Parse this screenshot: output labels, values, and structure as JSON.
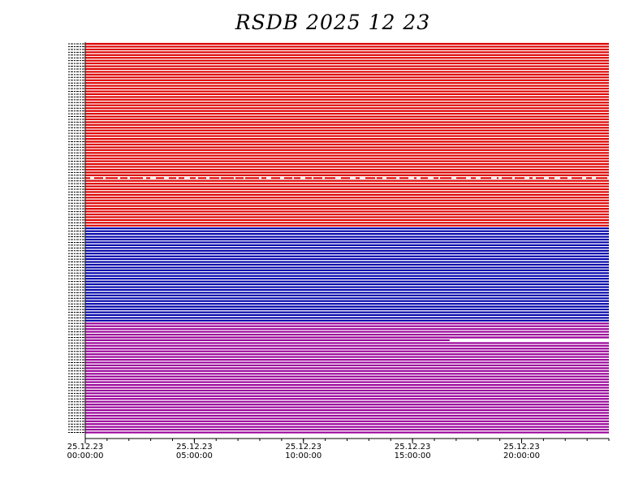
{
  "chart_data": {
    "type": "line",
    "title": "RSDB  2025  12  23",
    "x_axis": {
      "range": [
        "25.12.23 00:00:00",
        "25.12.24 00:00:00"
      ],
      "major_ticks": [
        {
          "date": "25.12.23",
          "time": "00:00:00",
          "hour": 0
        },
        {
          "date": "25.12.23",
          "time": "05:00:00",
          "hour": 5
        },
        {
          "date": "25.12.23",
          "time": "10:00:00",
          "hour": 10
        },
        {
          "date": "25.12.23",
          "time": "15:00:00",
          "hour": 15
        },
        {
          "date": "25.12.23",
          "time": "20:00:00",
          "hour": 20
        }
      ],
      "minor_tick_interval_hours": 1
    },
    "series_groups": [
      {
        "color": "#dd0000",
        "traces": 66
      },
      {
        "color": "#0000aa",
        "traces": 34
      },
      {
        "color": "#990099",
        "traces": 40
      }
    ],
    "legend": "none",
    "grid": false
  }
}
